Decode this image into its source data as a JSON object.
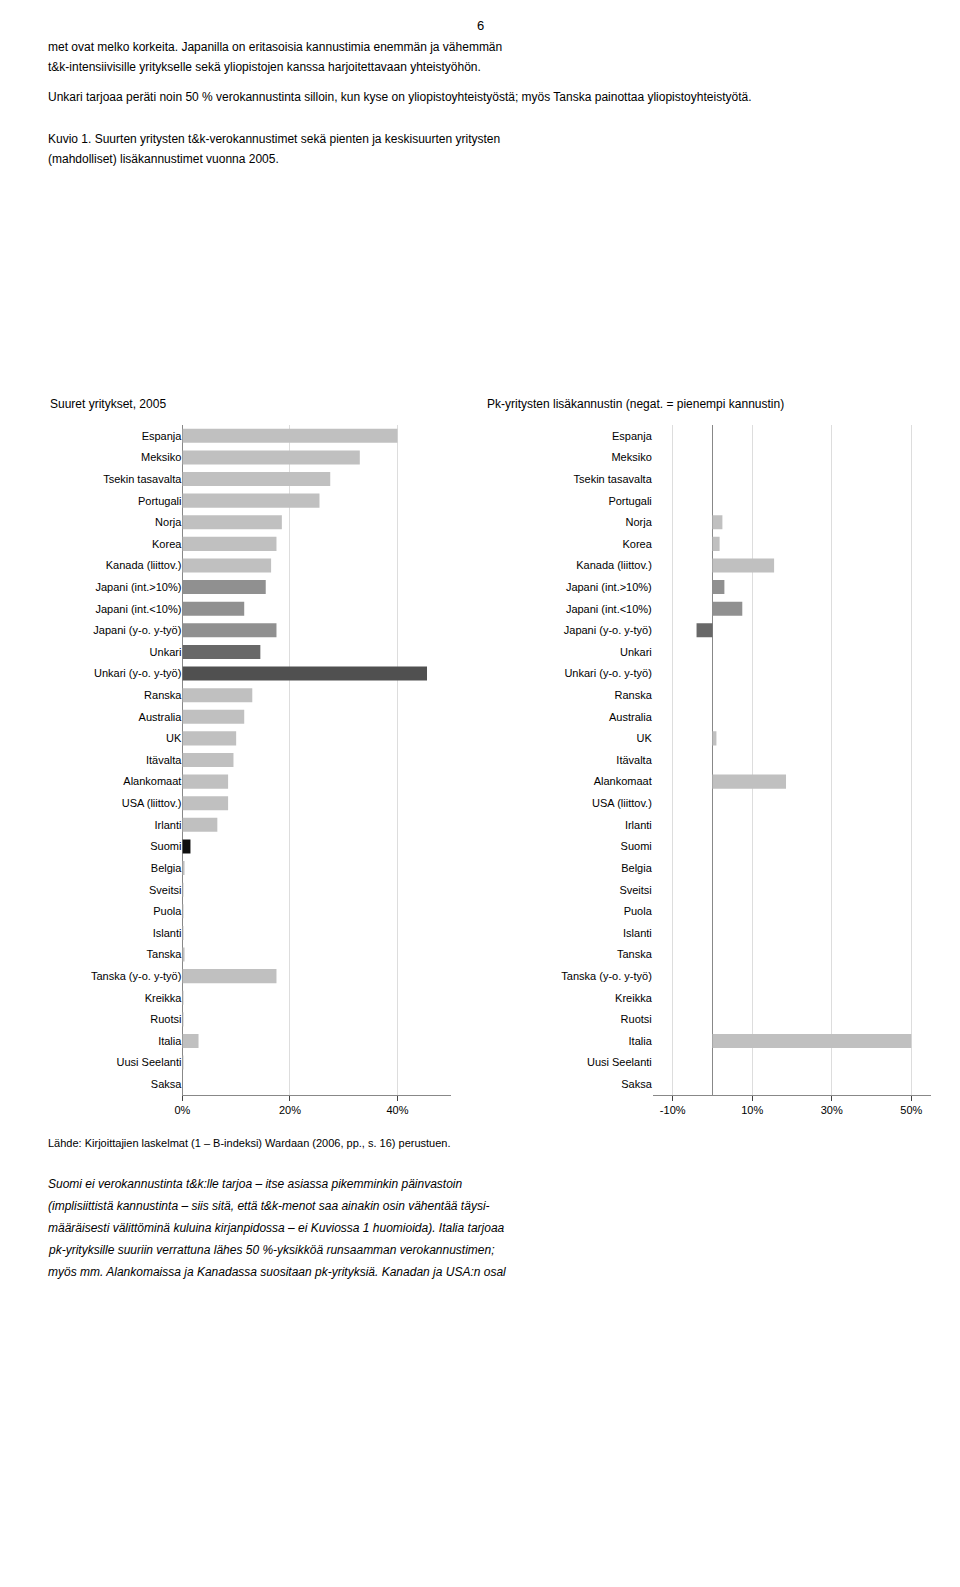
{
  "page_number": "6",
  "text_above": [
    "met ovat melko korkeita. Japanilla on eritasoisia kannustimia enemmän ja vähemmän",
    "t&k-intensiivisille yritykselle sekä yliopistojen kanssa harjoitettavaan yhteistyöhön.",
    "Unkari tarjoaa peräti noin 50 % verokannustinta silloin, kun kyse on yliopistoyhteistyöstä; myös Tanska painottaa yliopistoyhteistyötä.",
    "Kuvio 1. Suurten yritysten t&k-verokannustimet sekä pienten ja keskisuurten yritysten",
    "(mahdolliset) lisäkannustimet vuonna 2005."
  ],
  "source": "Lähde: Kirjoittajien laskelmat (1 – B-indeksi) Wardaan (2006, pp., s. 16) perustuen.",
  "text_below": [
    "Suomi ei verokannustinta t&k:lle tarjoa – itse asiassa pikemminkin päinvastoin",
    "(implisiittistä kannustinta – siis sitä, että t&k-menot saa ainakin osin vähentää täysi-",
    "määräisesti välittöminä kuluina kirjanpidossa – ei Kuviossa 1 huomioida). Italia tarjoaa",
    "pk-yrityksille suuriin verrattuna lähes 50 %-yksikköä runsaamman verokannustimen;",
    "myös mm. Alankomaissa ja Kanadassa suositaan pk-yrityksiä. Kanadan ja USA:n osal"
  ],
  "chart_data": [
    {
      "type": "bar",
      "orientation": "horizontal",
      "grid": true,
      "title": "Suuret yritykset, 2005",
      "categories": [
        "Espanja",
        "Meksiko",
        "Tsekin tasavalta",
        "Portugali",
        "Norja",
        "Korea",
        "Kanada (liittov.)",
        "Japani (int.>10%)",
        "Japani (int.<10%)",
        "Japani (y-o. y-työ)",
        "Unkari",
        "Unkari (y-o. y-työ)",
        "Ranska",
        "Australia",
        "UK",
        "Itävalta",
        "Alankomaat",
        "USA (liittov.)",
        "Irlanti",
        "Suomi",
        "Belgia",
        "Sveitsi",
        "Puola",
        "Islanti",
        "Tanska",
        "Tanska (y-o. y-työ)",
        "Kreikka",
        "Ruotsi",
        "Italia",
        "Uusi Seelanti",
        "Saksa"
      ],
      "values": [
        0.4,
        0.33,
        0.275,
        0.255,
        0.185,
        0.175,
        0.165,
        0.155,
        0.115,
        0.175,
        0.145,
        0.455,
        0.13,
        0.115,
        0.1,
        0.095,
        0.085,
        0.085,
        0.065,
        0.015,
        0.004,
        0.002,
        0.002,
        0.002,
        0.004,
        0.175,
        0.002,
        0.002,
        0.03,
        0.002,
        0.0
      ],
      "colors": [
        "#c0c0c0",
        "#c0c0c0",
        "#c0c0c0",
        "#c0c0c0",
        "#c0c0c0",
        "#c0c0c0",
        "#c0c0c0",
        "#909090",
        "#909090",
        "#909090",
        "#686868",
        "#505050",
        "#c0c0c0",
        "#c0c0c0",
        "#c0c0c0",
        "#c0c0c0",
        "#c0c0c0",
        "#c0c0c0",
        "#c0c0c0",
        "#101010",
        "#c0c0c0",
        "#c0c0c0",
        "#c0c0c0",
        "#c0c0c0",
        "#c0c0c0",
        "#c0c0c0",
        "#c0c0c0",
        "#c0c0c0",
        "#c0c0c0",
        "#c0c0c0",
        "#c0c0c0"
      ],
      "xlim": [
        0.0,
        0.5
      ],
      "xticks": [
        {
          "value": 0.0,
          "label": "0%"
        },
        {
          "value": 0.2,
          "label": "20%"
        },
        {
          "value": 0.4,
          "label": "40%"
        }
      ]
    },
    {
      "type": "bar",
      "orientation": "horizontal",
      "grid": true,
      "title": "Pk-yritysten lisäkannustin (negat. = pienempi kannustin)",
      "categories": [
        "Espanja",
        "Meksiko",
        "Tsekin tasavalta",
        "Portugali",
        "Norja",
        "Korea",
        "Kanada (liittov.)",
        "Japani (int.>10%)",
        "Japani (int.<10%)",
        "Japani (y-o. y-työ)",
        "Unkari",
        "Unkari (y-o. y-työ)",
        "Ranska",
        "Australia",
        "UK",
        "Itävalta",
        "Alankomaat",
        "USA (liittov.)",
        "Irlanti",
        "Suomi",
        "Belgia",
        "Sveitsi",
        "Puola",
        "Islanti",
        "Tanska",
        "Tanska (y-o. y-työ)",
        "Kreikka",
        "Ruotsi",
        "Italia",
        "Uusi Seelanti",
        "Saksa"
      ],
      "values": [
        0.0,
        0.0,
        0.0,
        0.0,
        0.025,
        0.018,
        0.155,
        0.03,
        0.075,
        -0.04,
        0.0,
        0.0,
        0.0,
        0.0,
        0.01,
        0.0,
        0.185,
        0.0,
        0.0,
        0.0,
        0.0,
        0.0,
        0.0,
        0.0,
        0.0,
        0.0,
        0.0,
        0.0,
        0.5,
        0.0,
        0.0
      ],
      "colors": [
        "#c0c0c0",
        "#c0c0c0",
        "#c0c0c0",
        "#c0c0c0",
        "#c0c0c0",
        "#c0c0c0",
        "#c0c0c0",
        "#909090",
        "#909090",
        "#686868",
        "#c0c0c0",
        "#c0c0c0",
        "#c0c0c0",
        "#c0c0c0",
        "#c0c0c0",
        "#c0c0c0",
        "#c0c0c0",
        "#c0c0c0",
        "#c0c0c0",
        "#c0c0c0",
        "#c0c0c0",
        "#c0c0c0",
        "#c0c0c0",
        "#c0c0c0",
        "#c0c0c0",
        "#c0c0c0",
        "#c0c0c0",
        "#c0c0c0",
        "#c0c0c0",
        "#c0c0c0",
        "#c0c0c0"
      ],
      "xlim": [
        -0.15,
        0.55
      ],
      "xticks": [
        {
          "value": -0.1,
          "label": "-10%"
        },
        {
          "value": 0.1,
          "label": "10%"
        },
        {
          "value": 0.3,
          "label": "30%"
        },
        {
          "value": 0.5,
          "label": "50%"
        }
      ]
    }
  ]
}
